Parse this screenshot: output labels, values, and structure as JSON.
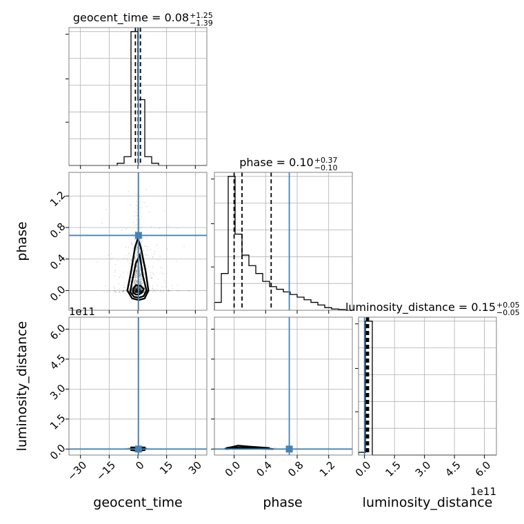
{
  "chart_data": {
    "type": "corner",
    "parameters": [
      "geocent_time",
      "phase",
      "luminosity_distance"
    ],
    "axis_labels": {
      "geocent_time": "geocent_time",
      "phase": "phase",
      "luminosity_distance": "luminosity_distance"
    },
    "truths": {
      "geocent_time": 0.3,
      "phase": 0.7,
      "luminosity_distance": 0.0
    },
    "ranges": {
      "geocent_time": [
        -36,
        36
      ],
      "phase": [
        -0.25,
        1.5
      ],
      "luminosity_distance": [
        -0.3,
        6.6
      ]
    },
    "ticks": {
      "geocent_time": {
        "values": [
          -30,
          -15,
          0,
          15,
          30
        ],
        "labels": [
          "−30",
          "−15",
          "0",
          "15",
          "30"
        ]
      },
      "phase": {
        "values": [
          0.0,
          0.4,
          0.8,
          1.2
        ],
        "labels": [
          "0.0",
          "0.4",
          "0.8",
          "1.2"
        ]
      },
      "luminosity_distance": {
        "values": [
          0.0,
          1.5,
          3.0,
          4.5,
          6.0
        ],
        "labels": [
          "0.0",
          "1.5",
          "3.0",
          "4.5",
          "6.0"
        ]
      }
    },
    "offset_text": "1e11",
    "titles": {
      "geocent_time": {
        "text": "geocent_time = 0.08",
        "plus": "+1.25",
        "minus": "−1.39"
      },
      "phase": {
        "text": "phase = 0.10",
        "plus": "+0.37",
        "minus": "−0.10"
      },
      "luminosity_distance": {
        "text": "luminosity_distance = 0.15",
        "plus": "+0.05",
        "minus": "−0.05"
      }
    },
    "quantiles": {
      "geocent_time": [
        -1.3,
        0.08,
        1.33
      ],
      "phase": [
        0.0,
        0.1,
        0.47
      ],
      "luminosity_distance": [
        0.1,
        0.15,
        0.2
      ]
    },
    "histograms": {
      "geocent_time": {
        "edges": [
          -36,
          -32.4,
          -28.8,
          -25.2,
          -21.6,
          -18,
          -14.4,
          -10.8,
          -7.2,
          -3.6,
          0,
          3.6,
          7.2,
          10.8,
          14.4,
          18,
          21.6,
          25.2,
          28.8,
          32.4,
          36
        ],
        "counts": [
          0,
          0,
          0,
          0,
          0,
          0,
          0,
          1,
          4,
          61,
          30,
          4,
          1,
          0,
          0,
          0,
          0,
          0,
          0,
          0
        ]
      },
      "phase": {
        "edges": [
          -0.25,
          -0.1625,
          -0.075,
          0.0125,
          0.1,
          0.1875,
          0.275,
          0.3625,
          0.45,
          0.5375,
          0.625,
          0.7125,
          0.8,
          0.8875,
          0.975,
          1.0625,
          1.15,
          1.2375,
          1.325,
          1.4125,
          1.5
        ],
        "counts": [
          3,
          14,
          51,
          29,
          21,
          17,
          14,
          11,
          9,
          8,
          7,
          6,
          5,
          4,
          3,
          2,
          1,
          0.5,
          0.3,
          0
        ]
      },
      "luminosity_distance": {
        "edges": [
          -0.3,
          0.045,
          0.39,
          0.735,
          1.08,
          1.425,
          1.77,
          2.115,
          2.46,
          2.805,
          3.15,
          3.495,
          3.84,
          4.185,
          4.53,
          4.875,
          5.22,
          5.565,
          5.91,
          6.255,
          6.6
        ],
        "counts": [
          2,
          99,
          0,
          0,
          0,
          0,
          0,
          0,
          0,
          0,
          0,
          0,
          0,
          0,
          0,
          0,
          0,
          0,
          0,
          0
        ]
      }
    },
    "contours": {
      "geocent_time_phase": [
        {
          "x": [
            -2.5,
            -1.0,
            0.5,
            2.0,
            3.0,
            1.5,
            -1.0,
            -2.5
          ],
          "y": [
            -0.03,
            -0.05,
            -0.05,
            -0.03,
            0.02,
            0.06,
            0.07,
            0.02
          ]
        },
        {
          "x": [
            -4.0,
            -2.0,
            0.5,
            3.0,
            4.5,
            2.5,
            1.0,
            -1.0,
            -3.0,
            -4.0
          ],
          "y": [
            -0.02,
            -0.08,
            -0.09,
            -0.07,
            0.0,
            0.2,
            0.45,
            0.35,
            0.12,
            -0.02
          ]
        },
        {
          "x": [
            -5.5,
            -3.0,
            0.5,
            3.5,
            5.5,
            4.0,
            1.5,
            0.0,
            -1.5,
            -3.5,
            -5.5
          ],
          "y": [
            0.0,
            -0.1,
            -0.12,
            -0.1,
            0.0,
            0.25,
            0.55,
            0.66,
            0.55,
            0.25,
            0.0
          ]
        }
      ],
      "geocent_time_luminosity_distance": [
        {
          "x": [
            -3.5,
            -1.0,
            1.0,
            3.5,
            3.5,
            -3.5,
            -3.5
          ],
          "y": [
            -0.05,
            -0.08,
            -0.08,
            -0.05,
            0.08,
            0.08,
            -0.05
          ]
        }
      ],
      "phase_luminosity_distance": [
        {
          "x": [
            -0.1,
            0.0,
            0.1,
            0.3,
            0.5,
            0.3,
            0.1,
            -0.05,
            -0.1
          ],
          "y": [
            0.0,
            0.04,
            0.06,
            0.07,
            0.0,
            0.02,
            0.03,
            0.02,
            0.0
          ]
        },
        {
          "x": [
            -0.12,
            -0.03,
            0.05,
            0.2,
            0.45,
            0.2,
            0.05,
            -0.05,
            -0.12
          ],
          "y": [
            0.01,
            0.1,
            0.17,
            0.12,
            0.05,
            0.05,
            0.07,
            0.06,
            0.01
          ]
        }
      ]
    },
    "colors": {
      "truth": "#4682b4",
      "line": "#000000",
      "grid": "#b0b0b0",
      "frame": "#7f7f7f"
    }
  }
}
